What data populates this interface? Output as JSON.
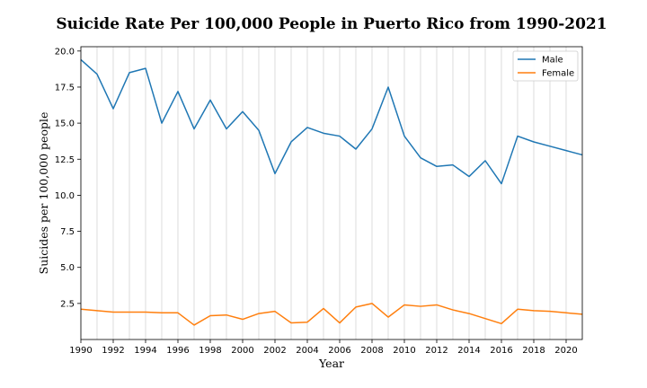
{
  "chart_data": {
    "type": "line",
    "title": "Suicide Rate Per 100,000 People in Puerto Rico from 1990-2021",
    "xlabel": "Year",
    "ylabel": "Suicides per 100,000 people",
    "xlim": [
      1990,
      2021
    ],
    "ylim": [
      0,
      20.3
    ],
    "xticks": [
      1990,
      1992,
      1994,
      1996,
      1998,
      2000,
      2002,
      2004,
      2006,
      2008,
      2010,
      2012,
      2014,
      2016,
      2018,
      2020
    ],
    "yticks": [
      2.5,
      5.0,
      7.5,
      10.0,
      12.5,
      15.0,
      17.5,
      20.0
    ],
    "grid": "vertical",
    "legend": "top-right",
    "x": [
      1990,
      1991,
      1992,
      1993,
      1994,
      1995,
      1996,
      1997,
      1998,
      1999,
      2000,
      2001,
      2002,
      2003,
      2004,
      2005,
      2006,
      2007,
      2008,
      2009,
      2010,
      2011,
      2012,
      2013,
      2014,
      2015,
      2016,
      2017,
      2018,
      2019,
      2020,
      2021
    ],
    "series": [
      {
        "name": "Male",
        "color": "#1f77b4",
        "values": [
          19.4,
          18.4,
          16.0,
          18.5,
          18.8,
          15.0,
          17.2,
          14.6,
          16.6,
          14.6,
          15.8,
          14.5,
          11.5,
          13.7,
          14.7,
          14.3,
          14.1,
          13.2,
          14.6,
          17.5,
          14.1,
          12.6,
          12.0,
          12.1,
          11.3,
          12.4,
          10.8,
          14.1,
          13.7,
          13.4,
          13.1,
          12.8
        ]
      },
      {
        "name": "Female",
        "color": "#ff7f0e",
        "values": [
          2.1,
          2.0,
          1.9,
          1.9,
          1.9,
          1.85,
          1.85,
          1.0,
          1.65,
          1.7,
          1.4,
          1.8,
          1.95,
          1.15,
          1.2,
          2.15,
          1.15,
          2.25,
          2.5,
          1.55,
          2.4,
          2.3,
          2.4,
          2.05,
          1.8,
          1.45,
          1.1,
          2.1,
          2.0,
          1.95,
          1.85,
          1.75
        ]
      }
    ]
  }
}
